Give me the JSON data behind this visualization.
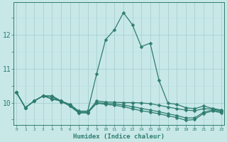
{
  "xlabel": "Humidex (Indice chaleur)",
  "color": "#2e7d6e",
  "bg_color": "#c8e8e8",
  "grid_major_color": "#a8d0d0",
  "grid_minor_color": "#b8dede",
  "ylim": [
    9.35,
    12.95
  ],
  "yticks": [
    10,
    11,
    12
  ],
  "xlim": [
    -0.3,
    23.3
  ],
  "markersize": 2.5,
  "linewidth": 0.9,
  "series": [
    [
      10.3,
      9.85,
      10.05,
      10.2,
      10.2,
      10.05,
      9.95,
      9.75,
      9.75,
      10.85,
      11.85,
      12.15,
      12.65,
      12.3,
      11.65,
      11.75,
      10.65,
      9.98,
      9.95,
      9.85,
      9.82,
      9.9,
      9.83,
      9.78
    ],
    [
      10.3,
      9.85,
      10.05,
      10.2,
      10.18,
      10.02,
      9.92,
      9.72,
      9.72,
      10.05,
      10.02,
      10.01,
      10.0,
      10.0,
      9.99,
      9.97,
      9.92,
      9.87,
      9.82,
      9.78,
      9.76,
      9.82,
      9.81,
      9.76
    ],
    [
      10.3,
      9.85,
      10.05,
      10.2,
      10.12,
      10.05,
      9.9,
      9.7,
      9.7,
      10.0,
      9.98,
      9.96,
      9.93,
      9.88,
      9.83,
      9.78,
      9.73,
      9.67,
      9.62,
      9.55,
      9.55,
      9.72,
      9.78,
      9.73
    ],
    [
      10.3,
      9.85,
      10.05,
      10.2,
      10.1,
      10.05,
      9.9,
      9.7,
      9.7,
      9.98,
      9.95,
      9.92,
      9.88,
      9.82,
      9.76,
      9.72,
      9.67,
      9.61,
      9.56,
      9.48,
      9.5,
      9.68,
      9.75,
      9.7
    ]
  ],
  "xtick_labels": [
    "0",
    "1",
    "2",
    "3",
    "4",
    "5",
    "6",
    "7",
    "8",
    "9",
    "10",
    "11",
    "12",
    "13",
    "14",
    "15",
    "16",
    "17",
    "18",
    "19",
    "20",
    "21",
    "22",
    "23"
  ]
}
